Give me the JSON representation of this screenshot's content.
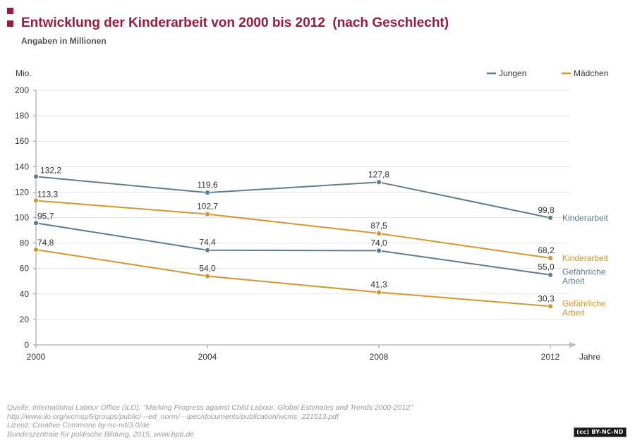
{
  "header": {
    "title": "Entwicklung der Kinderarbeit von 2000 bis 2012  (nach Geschlecht)",
    "subtitle": "Angaben in Millionen"
  },
  "colors": {
    "accent": "#9b1c3a",
    "jungen": "#5e7d92",
    "maedchen": "#d4962e",
    "grid": "#e3e3e3"
  },
  "chart_data": {
    "type": "line",
    "ylabel": "Mio.",
    "xlabel": "Jahre",
    "x": [
      "2000",
      "2004",
      "2008",
      "2012"
    ],
    "ylim": [
      0,
      200
    ],
    "yticks": [
      "0",
      "20",
      "40",
      "60",
      "80",
      "100",
      "120",
      "140",
      "160",
      "180",
      "200"
    ],
    "grid": true,
    "legend_position": "top-right",
    "legend": [
      {
        "name": "Jungen",
        "color": "#5e7d92"
      },
      {
        "name": "Mädchen",
        "color": "#d4962e"
      }
    ],
    "series": [
      {
        "group": "Jungen",
        "name": "Kinderarbeit",
        "color": "#5e7d92",
        "values": [
          132.2,
          119.6,
          127.8,
          99.8
        ],
        "labels": [
          "132,2",
          "119,6",
          "127,8",
          "99,8"
        ],
        "end_label": [
          "Kinderarbeit"
        ]
      },
      {
        "group": "Mädchen",
        "name": "Kinderarbeit",
        "color": "#d4962e",
        "values": [
          113.3,
          102.7,
          87.5,
          68.2
        ],
        "labels": [
          "113,3",
          "102,7",
          "87,5",
          "68,2"
        ],
        "end_label": [
          "Kinderarbeit"
        ]
      },
      {
        "group": "Jungen",
        "name": "Gefährliche Arbeit",
        "color": "#5e7d92",
        "values": [
          95.7,
          74.4,
          74.0,
          55.0
        ],
        "labels": [
          "95,7",
          "74,4",
          "74,0",
          "55,0"
        ],
        "end_label": [
          "Gefährliche",
          "Arbeit"
        ]
      },
      {
        "group": "Mädchen",
        "name": "Gefährliche Arbeit",
        "color": "#d4962e",
        "values": [
          74.8,
          54.0,
          41.3,
          30.3
        ],
        "labels": [
          "74,8",
          "54,0",
          "41,3",
          "30,3"
        ],
        "end_label": [
          "Gefährliche",
          "Arbeit"
        ]
      }
    ]
  },
  "footer": {
    "lines": [
      "Quelle: International Labour Office (ILO). \"Marking Progress against Child Labour. Global Estimates and Trends 2000-2012\"",
      "http://www.ilo.org/wcmsp5/groups/public/---ed_norm/---ipec/documents/publication/wcms_221513.pdf",
      "Lizenz: Creative Commons by-nc-nd/3.0/de",
      "Bundeszentrale für politische Bildung, 2015, www.bpb.de"
    ],
    "license_badge": "(cc) BY-NC-ND"
  }
}
